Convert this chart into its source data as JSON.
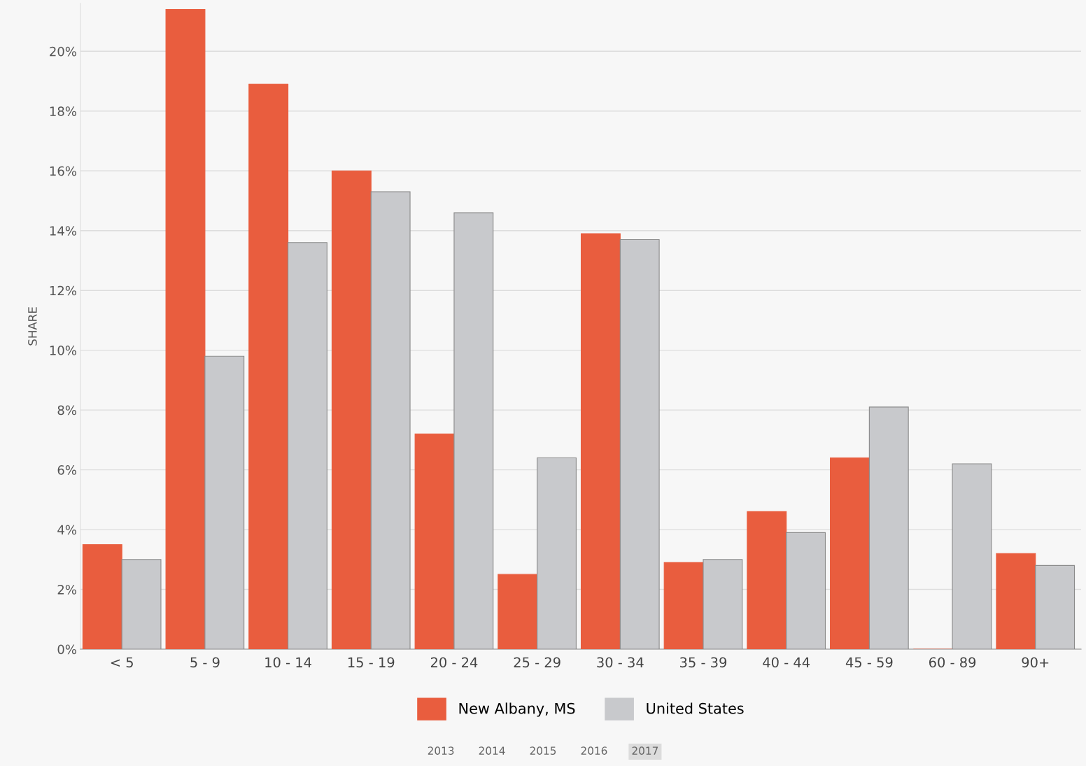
{
  "chart_data": {
    "type": "bar",
    "ylabel": "SHARE",
    "categories": [
      "< 5",
      "5 - 9",
      "10 - 14",
      "15 - 19",
      "20 - 24",
      "25 - 29",
      "30 - 34",
      "35 - 39",
      "40 - 44",
      "45 - 59",
      "60 - 89",
      "90+"
    ],
    "series": [
      {
        "name": "New Albany, MS",
        "color": "#e95d3e",
        "values": [
          3.5,
          21.4,
          18.9,
          16.0,
          7.2,
          2.5,
          13.9,
          2.9,
          4.6,
          6.4,
          0,
          3.2
        ]
      },
      {
        "name": "United States",
        "color": "#c8c9cc",
        "values": [
          3.0,
          9.8,
          13.6,
          15.3,
          14.6,
          6.4,
          13.7,
          3.0,
          3.9,
          8.1,
          6.2,
          2.8
        ]
      }
    ],
    "ylim": [
      0,
      21.6
    ],
    "yticks": [
      {
        "value": 0,
        "label": "0%"
      },
      {
        "value": 2,
        "label": "2%"
      },
      {
        "value": 4,
        "label": "4%"
      },
      {
        "value": 6,
        "label": "6%"
      },
      {
        "value": 8,
        "label": "8%"
      },
      {
        "value": 10,
        "label": "10%"
      },
      {
        "value": 12,
        "label": "12%"
      },
      {
        "value": 14,
        "label": "14%"
      },
      {
        "value": 16,
        "label": "16%"
      },
      {
        "value": 18,
        "label": "18%"
      },
      {
        "value": 20,
        "label": "20%"
      }
    ],
    "grid": "y",
    "legend": "bottom",
    "annotations": [
      "2013",
      "2014",
      "2015",
      "2016",
      "2017"
    ]
  }
}
